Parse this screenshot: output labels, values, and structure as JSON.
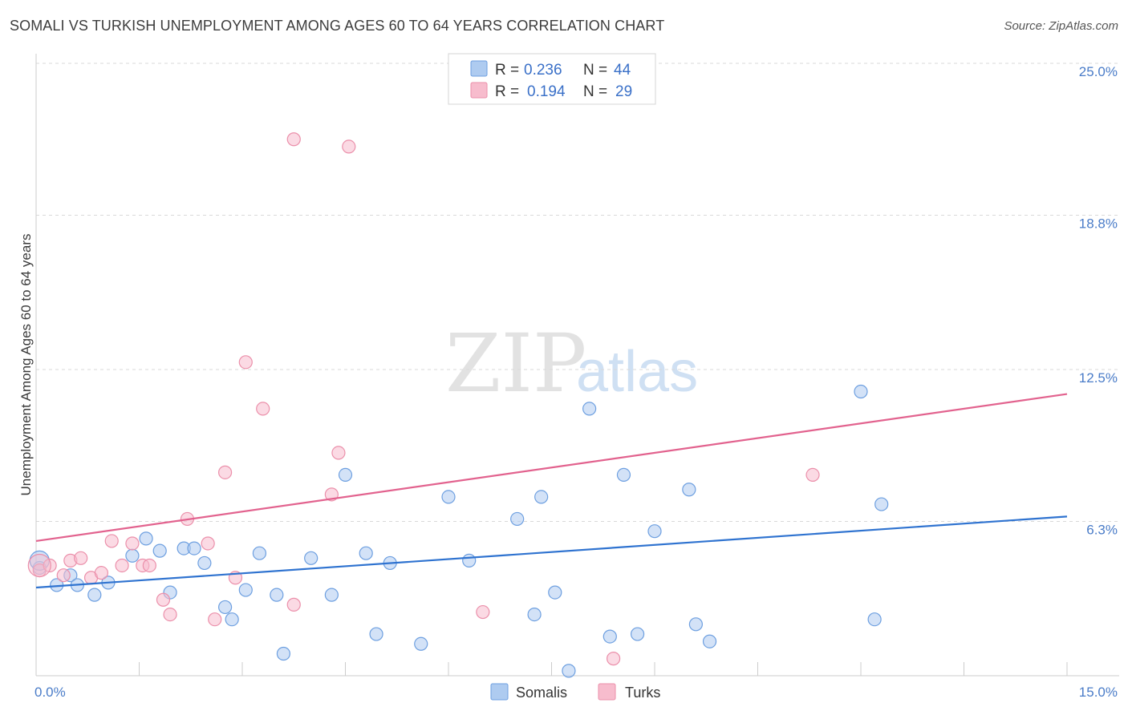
{
  "title": "SOMALI VS TURKISH UNEMPLOYMENT AMONG AGES 60 TO 64 YEARS CORRELATION CHART",
  "source": "Source: ZipAtlas.com",
  "watermark": {
    "zip": "ZIP",
    "atlas": "atlas"
  },
  "colors": {
    "somali_fill": "#aecbf0",
    "somali_stroke": "#6d9fe0",
    "somali_line": "#2f73d0",
    "turk_fill": "#f7bccd",
    "turk_stroke": "#eb8faa",
    "turk_line": "#e2628e",
    "grid": "#d9d9d9",
    "tick_label": "#4a7cc8"
  },
  "legend": {
    "r_label": "R =",
    "n_label": "N =",
    "items": [
      {
        "name": "Somalis",
        "r": "0.236",
        "n": "44"
      },
      {
        "name": "Turks",
        "r": "0.194",
        "n": "29"
      }
    ]
  },
  "chart_data": {
    "type": "scatter",
    "title": "SOMALI VS TURKISH UNEMPLOYMENT AMONG AGES 60 TO 64 YEARS CORRELATION CHART",
    "xlabel": "",
    "ylabel": "Unemployment Among Ages 60 to 64 years",
    "xlim": [
      0,
      15
    ],
    "ylim": [
      0,
      25
    ],
    "x_tick_labels": [
      "0.0%",
      "15.0%"
    ],
    "y_ticks": [
      6.3,
      12.5,
      18.8,
      25.0
    ],
    "y_tick_labels": [
      "6.3%",
      "12.5%",
      "18.8%",
      "25.0%"
    ],
    "grid": true,
    "series": [
      {
        "name": "Somalis",
        "r": 0.236,
        "n": 44,
        "trend": {
          "x": [
            0,
            15
          ],
          "y": [
            3.6,
            6.5
          ]
        },
        "points": [
          [
            0.05,
            4.4
          ],
          [
            0.3,
            3.7
          ],
          [
            0.5,
            4.1
          ],
          [
            0.6,
            3.7
          ],
          [
            0.85,
            3.3
          ],
          [
            1.05,
            3.8
          ],
          [
            1.4,
            4.9
          ],
          [
            1.6,
            5.6
          ],
          [
            1.8,
            5.1
          ],
          [
            1.95,
            3.4
          ],
          [
            2.15,
            5.2
          ],
          [
            2.3,
            5.2
          ],
          [
            2.45,
            4.6
          ],
          [
            2.75,
            2.8
          ],
          [
            2.85,
            2.3
          ],
          [
            3.05,
            3.5
          ],
          [
            3.25,
            5.0
          ],
          [
            3.5,
            3.3
          ],
          [
            3.6,
            0.9
          ],
          [
            4.0,
            4.8
          ],
          [
            4.3,
            3.3
          ],
          [
            4.5,
            8.2
          ],
          [
            4.8,
            5.0
          ],
          [
            4.95,
            1.7
          ],
          [
            5.15,
            4.6
          ],
          [
            5.6,
            1.3
          ],
          [
            6.0,
            7.3
          ],
          [
            6.3,
            4.7
          ],
          [
            7.0,
            6.4
          ],
          [
            7.25,
            2.5
          ],
          [
            7.35,
            7.3
          ],
          [
            7.55,
            3.4
          ],
          [
            7.75,
            0.2
          ],
          [
            8.05,
            10.9
          ],
          [
            8.35,
            1.6
          ],
          [
            8.55,
            8.2
          ],
          [
            8.75,
            1.7
          ],
          [
            9.0,
            5.9
          ],
          [
            9.5,
            7.6
          ],
          [
            9.6,
            2.1
          ],
          [
            9.8,
            1.4
          ],
          [
            12.0,
            11.6
          ],
          [
            12.2,
            2.3
          ],
          [
            12.3,
            7.0
          ]
        ]
      },
      {
        "name": "Turks",
        "r": 0.194,
        "n": 29,
        "trend": {
          "x": [
            0,
            15
          ],
          "y": [
            5.5,
            11.5
          ]
        },
        "points": [
          [
            0.05,
            4.3
          ],
          [
            0.2,
            4.5
          ],
          [
            0.4,
            4.1
          ],
          [
            0.5,
            4.7
          ],
          [
            0.65,
            4.8
          ],
          [
            0.8,
            4.0
          ],
          [
            0.95,
            4.2
          ],
          [
            1.1,
            5.5
          ],
          [
            1.25,
            4.5
          ],
          [
            1.4,
            5.4
          ],
          [
            1.55,
            4.5
          ],
          [
            1.65,
            4.5
          ],
          [
            1.85,
            3.1
          ],
          [
            1.95,
            2.5
          ],
          [
            2.2,
            6.4
          ],
          [
            2.5,
            5.4
          ],
          [
            2.6,
            2.3
          ],
          [
            2.75,
            8.3
          ],
          [
            2.9,
            4.0
          ],
          [
            3.05,
            12.8
          ],
          [
            3.3,
            10.9
          ],
          [
            3.75,
            2.9
          ],
          [
            3.75,
            21.9
          ],
          [
            4.3,
            7.4
          ],
          [
            4.4,
            9.1
          ],
          [
            4.55,
            21.6
          ],
          [
            6.5,
            2.6
          ],
          [
            8.4,
            0.7
          ],
          [
            11.3,
            8.2
          ]
        ]
      }
    ]
  }
}
